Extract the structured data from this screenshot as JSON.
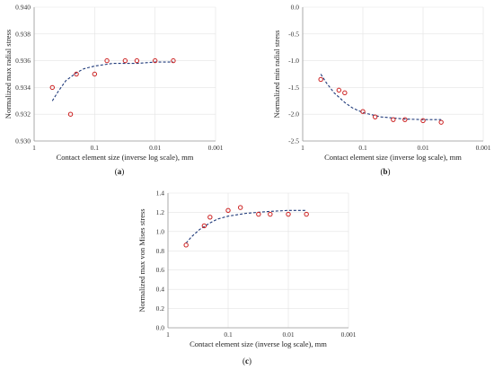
{
  "chart_data": [
    {
      "type": "scatter",
      "panel_label": "a",
      "xlabel": "Contact element size (inverse log scale), mm",
      "ylabel": "Normalized max radial stress",
      "x_scale": "log-reversed",
      "xlim": [
        1,
        0.001
      ],
      "ylim": [
        0.93,
        0.94
      ],
      "xticks": [
        1,
        0.1,
        0.01,
        0.001
      ],
      "xtick_labels": [
        "1",
        "0.1",
        "0.01",
        "0.001"
      ],
      "yticks": [
        0.93,
        0.932,
        0.934,
        0.936,
        0.938,
        0.94
      ],
      "ytick_labels": [
        "0.930",
        "0.932",
        "0.934",
        "0.936",
        "0.938",
        "0.940"
      ],
      "grid": true,
      "points": [
        {
          "x": 0.5,
          "y": 0.934
        },
        {
          "x": 0.25,
          "y": 0.932
        },
        {
          "x": 0.2,
          "y": 0.935
        },
        {
          "x": 0.1,
          "y": 0.935
        },
        {
          "x": 0.0625,
          "y": 0.936
        },
        {
          "x": 0.03125,
          "y": 0.936
        },
        {
          "x": 0.02,
          "y": 0.936
        },
        {
          "x": 0.01,
          "y": 0.936
        },
        {
          "x": 0.005,
          "y": 0.936
        }
      ],
      "trend": [
        {
          "x": 0.5,
          "y": 0.933
        },
        {
          "x": 0.4,
          "y": 0.9337
        },
        {
          "x": 0.3,
          "y": 0.9345
        },
        {
          "x": 0.2,
          "y": 0.9351
        },
        {
          "x": 0.15,
          "y": 0.9354
        },
        {
          "x": 0.1,
          "y": 0.9356
        },
        {
          "x": 0.05,
          "y": 0.9358
        },
        {
          "x": 0.02,
          "y": 0.9358
        },
        {
          "x": 0.01,
          "y": 0.9359
        },
        {
          "x": 0.005,
          "y": 0.9359
        }
      ]
    },
    {
      "type": "scatter",
      "panel_label": "b",
      "xlabel": "Contact element size (inverse log scale), mm",
      "ylabel": "Normalized min radial stress",
      "x_scale": "log-reversed",
      "xlim": [
        1,
        0.001
      ],
      "ylim": [
        -2.5,
        0
      ],
      "xticks": [
        1,
        0.1,
        0.01,
        0.001
      ],
      "xtick_labels": [
        "1",
        "0.1",
        "0.01",
        "0.001"
      ],
      "yticks": [
        -2.5,
        -2,
        -1.5,
        -1,
        -0.5,
        0
      ],
      "ytick_labels": [
        "-2.5",
        "-2.0",
        "-1.5",
        "-1.0",
        "-0.5",
        "0.0"
      ],
      "grid": true,
      "points": [
        {
          "x": 0.5,
          "y": -1.35
        },
        {
          "x": 0.25,
          "y": -1.55
        },
        {
          "x": 0.2,
          "y": -1.6
        },
        {
          "x": 0.1,
          "y": -1.95
        },
        {
          "x": 0.0625,
          "y": -2.05
        },
        {
          "x": 0.03125,
          "y": -2.1
        },
        {
          "x": 0.02,
          "y": -2.1
        },
        {
          "x": 0.01,
          "y": -2.12
        },
        {
          "x": 0.005,
          "y": -2.15
        }
      ],
      "trend": [
        {
          "x": 0.5,
          "y": -1.25
        },
        {
          "x": 0.4,
          "y": -1.42
        },
        {
          "x": 0.3,
          "y": -1.6
        },
        {
          "x": 0.2,
          "y": -1.78
        },
        {
          "x": 0.15,
          "y": -1.88
        },
        {
          "x": 0.1,
          "y": -1.97
        },
        {
          "x": 0.05,
          "y": -2.05
        },
        {
          "x": 0.02,
          "y": -2.09
        },
        {
          "x": 0.01,
          "y": -2.1
        },
        {
          "x": 0.005,
          "y": -2.1
        }
      ]
    },
    {
      "type": "scatter",
      "panel_label": "c",
      "xlabel": "Contact element size (inverse log scale), mm",
      "ylabel": "Normalized max von Mises stress",
      "x_scale": "log-reversed",
      "xlim": [
        1,
        0.001
      ],
      "ylim": [
        0,
        1.4
      ],
      "xticks": [
        1,
        0.1,
        0.01,
        0.001
      ],
      "xtick_labels": [
        "1",
        "0.1",
        "0.01",
        "0.001"
      ],
      "yticks": [
        0,
        0.2,
        0.4,
        0.6,
        0.8,
        1.0,
        1.2,
        1.4
      ],
      "ytick_labels": [
        "0.0",
        "0.2",
        "0.4",
        "0.6",
        "0.8",
        "1.0",
        "1.2",
        "1.4"
      ],
      "grid": true,
      "points": [
        {
          "x": 0.5,
          "y": 0.86
        },
        {
          "x": 0.25,
          "y": 1.06
        },
        {
          "x": 0.2,
          "y": 1.15
        },
        {
          "x": 0.1,
          "y": 1.22
        },
        {
          "x": 0.0625,
          "y": 1.25
        },
        {
          "x": 0.03125,
          "y": 1.18
        },
        {
          "x": 0.02,
          "y": 1.18
        },
        {
          "x": 0.01,
          "y": 1.18
        },
        {
          "x": 0.005,
          "y": 1.18
        }
      ],
      "trend": [
        {
          "x": 0.5,
          "y": 0.88
        },
        {
          "x": 0.4,
          "y": 0.95
        },
        {
          "x": 0.3,
          "y": 1.02
        },
        {
          "x": 0.2,
          "y": 1.09
        },
        {
          "x": 0.15,
          "y": 1.13
        },
        {
          "x": 0.1,
          "y": 1.16
        },
        {
          "x": 0.05,
          "y": 1.19
        },
        {
          "x": 0.02,
          "y": 1.21
        },
        {
          "x": 0.01,
          "y": 1.22
        },
        {
          "x": 0.005,
          "y": 1.22
        }
      ]
    }
  ]
}
